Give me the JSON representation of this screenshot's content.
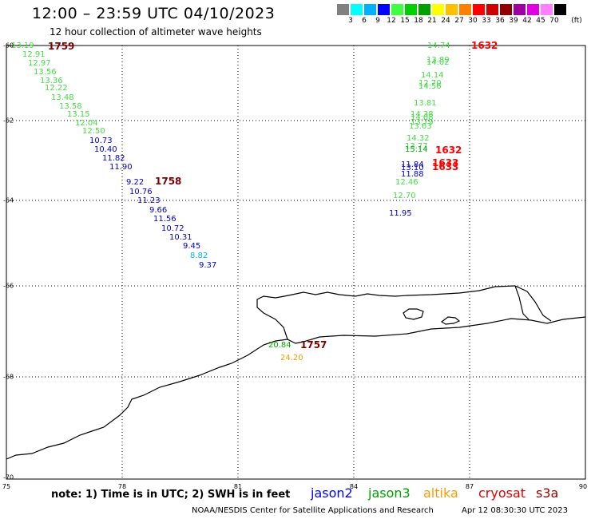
{
  "header": {
    "title": "12:00 – 23:59 UTC 04/10/2023",
    "subtitle": "12 hour collection of altimeter wave heights"
  },
  "legend": {
    "units": "(ft)",
    "bins": [
      {
        "label": "3",
        "color": "#808080"
      },
      {
        "label": "6",
        "color": "#00ffff"
      },
      {
        "label": "9",
        "color": "#00b0ff"
      },
      {
        "label": "12",
        "color": "#0000ff"
      },
      {
        "label": "15",
        "color": "#40ff40"
      },
      {
        "label": "18",
        "color": "#00d000"
      },
      {
        "label": "21",
        "color": "#00a000"
      },
      {
        "label": "24",
        "color": "#ffff00"
      },
      {
        "label": "27",
        "color": "#ffc000"
      },
      {
        "label": "30",
        "color": "#ff8000"
      },
      {
        "label": "33",
        "color": "#ff0000"
      },
      {
        "label": "36",
        "color": "#d00000"
      },
      {
        "label": "39",
        "color": "#900000"
      },
      {
        "label": "42",
        "color": "#a000a0"
      },
      {
        "label": "45",
        "color": "#e000e0"
      },
      {
        "label": "70",
        "color": "#ff80ff"
      },
      {
        "label": "",
        "color": "#000000"
      }
    ]
  },
  "axes": {
    "lat_labels": [
      "-60",
      "-62",
      "-64",
      "-66",
      "-68",
      "-70"
    ],
    "lon_labels": [
      "75",
      "78",
      "81",
      "84",
      "87",
      "90"
    ]
  },
  "colors": {
    "light_green": "#44dd44",
    "green": "#00aa00",
    "blue": "#0000cc",
    "cyan": "#00b8d8",
    "orange": "#f0a000",
    "dark_red": "#800000",
    "red": "#ff0000",
    "coast": "#000000",
    "grid": "#000000"
  },
  "swh_values": [
    {
      "text": "13.19",
      "c": "light_green"
    },
    {
      "text": "12.91",
      "c": "light_green"
    },
    {
      "text": "12.97",
      "c": "light_green"
    },
    {
      "text": "13.56",
      "c": "light_green"
    },
    {
      "text": "13.36",
      "c": "light_green"
    },
    {
      "text": "12.22",
      "c": "light_green"
    },
    {
      "text": "13.48",
      "c": "light_green"
    },
    {
      "text": "13.58",
      "c": "light_green"
    },
    {
      "text": "13.15",
      "c": "light_green"
    },
    {
      "text": "12.04",
      "c": "light_green"
    },
    {
      "text": "12.50",
      "c": "light_green"
    },
    {
      "text": "10.73",
      "c": "blue"
    },
    {
      "text": "10.40",
      "c": "blue"
    },
    {
      "text": "11.82",
      "c": "blue"
    },
    {
      "text": "11.90",
      "c": "blue"
    },
    {
      "text": "9.22",
      "c": "blue"
    },
    {
      "text": "10.76",
      "c": "blue"
    },
    {
      "text": "11.23",
      "c": "blue"
    },
    {
      "text": "9.66",
      "c": "blue"
    },
    {
      "text": "11.56",
      "c": "blue"
    },
    {
      "text": "10.72",
      "c": "blue"
    },
    {
      "text": "10.31",
      "c": "blue"
    },
    {
      "text": "9.45",
      "c": "blue"
    },
    {
      "text": "8.82",
      "c": "cyan"
    },
    {
      "text": "9.37",
      "c": "blue"
    },
    {
      "text": "14.74",
      "c": "light_green"
    },
    {
      "text": "13.89",
      "c": "light_green"
    },
    {
      "text": "14.02",
      "c": "light_green"
    },
    {
      "text": "14.14",
      "c": "light_green"
    },
    {
      "text": "12.70",
      "c": "light_green"
    },
    {
      "text": "14.56",
      "c": "light_green"
    },
    {
      "text": "13.81",
      "c": "light_green"
    },
    {
      "text": "14.38",
      "c": "light_green"
    },
    {
      "text": "14.08",
      "c": "light_green"
    },
    {
      "text": "13.79",
      "c": "light_green"
    },
    {
      "text": "13.63",
      "c": "light_green"
    },
    {
      "text": "14.32",
      "c": "light_green"
    },
    {
      "text": "13.77",
      "c": "light_green"
    },
    {
      "text": "15.14",
      "c": "green"
    },
    {
      "text": "11.84",
      "c": "blue"
    },
    {
      "text": "13.10",
      "c": "blue"
    },
    {
      "text": "11.88",
      "c": "blue"
    },
    {
      "text": "12.46",
      "c": "light_green"
    },
    {
      "text": "12.70",
      "c": "light_green"
    },
    {
      "text": "11.95",
      "c": "blue"
    },
    {
      "text": "20.84",
      "c": "green"
    },
    {
      "text": "24.20",
      "c": "orange"
    }
  ],
  "pass_times": [
    {
      "text": "1759",
      "c": "dark_red"
    },
    {
      "text": "1758",
      "c": "dark_red"
    },
    {
      "text": "1632",
      "c": "red"
    },
    {
      "text": "1632",
      "c": "red"
    },
    {
      "text": "1633",
      "c": "red"
    },
    {
      "text": "1633",
      "c": "red"
    },
    {
      "text": "1757",
      "c": "dark_red"
    }
  ],
  "footer": {
    "note": "note:  1) Time is in UTC;  2) SWH is in feet",
    "missions": [
      {
        "name": "jason2",
        "color": "#0000ff"
      },
      {
        "name": "jason3",
        "color": "#00a000"
      },
      {
        "name": "altika",
        "color": "#ff9900"
      },
      {
        "name": "cryosat",
        "color": "#dd0000"
      },
      {
        "name": "s3a",
        "color": "#990000"
      }
    ],
    "credit": "NOAA/NESDIS Center for Satellite Applications and Research",
    "timestamp": "Apr 12 08:30:30 UTC 2023"
  }
}
